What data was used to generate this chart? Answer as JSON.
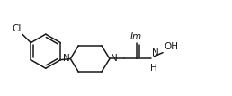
{
  "bg_color": "#ffffff",
  "line_color": "#1a1a1a",
  "line_width": 1.1,
  "font_size": 7.0,
  "fig_width": 2.58,
  "fig_height": 1.07,
  "dpi": 100,
  "xlim": [
    0,
    10.5
  ],
  "ylim": [
    0,
    4.2
  ]
}
